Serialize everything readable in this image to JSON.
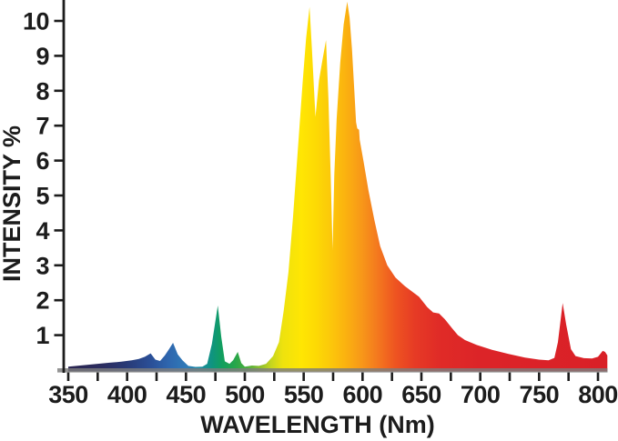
{
  "chart_data": {
    "type": "area",
    "title": "",
    "xlabel": "WAVELENGTH (Nm)",
    "ylabel": "INTENSITY %",
    "xlim": [
      350,
      810
    ],
    "ylim": [
      0,
      10.6
    ],
    "x_tick_minor_step_nm": 25,
    "x_tick_labels": [
      350,
      400,
      450,
      500,
      550,
      600,
      650,
      700,
      750,
      800
    ],
    "y_tick_labels": [
      1,
      2,
      3,
      4,
      5,
      6,
      7,
      8,
      9,
      10
    ],
    "grid": "off",
    "legend": "none",
    "series": [
      {
        "name": "spectral-intensity",
        "units_x": "nm",
        "units_y": "percent",
        "points": [
          [
            350,
            0.1
          ],
          [
            360,
            0.13
          ],
          [
            372,
            0.17
          ],
          [
            385,
            0.21
          ],
          [
            395,
            0.24
          ],
          [
            404,
            0.28
          ],
          [
            410,
            0.32
          ],
          [
            415,
            0.38
          ],
          [
            420,
            0.48
          ],
          [
            424,
            0.3
          ],
          [
            428,
            0.26
          ],
          [
            432,
            0.42
          ],
          [
            436,
            0.62
          ],
          [
            439,
            0.78
          ],
          [
            443,
            0.45
          ],
          [
            447,
            0.28
          ],
          [
            452,
            0.12
          ],
          [
            458,
            0.09
          ],
          [
            464,
            0.1
          ],
          [
            468,
            0.18
          ],
          [
            472,
            0.75
          ],
          [
            477,
            1.85
          ],
          [
            480,
            0.95
          ],
          [
            483,
            0.25
          ],
          [
            487,
            0.18
          ],
          [
            490,
            0.28
          ],
          [
            494,
            0.52
          ],
          [
            497,
            0.2
          ],
          [
            500,
            0.1
          ],
          [
            506,
            0.13
          ],
          [
            512,
            0.12
          ],
          [
            518,
            0.18
          ],
          [
            524,
            0.4
          ],
          [
            529,
            0.8
          ],
          [
            533,
            1.7
          ],
          [
            537,
            2.8
          ],
          [
            541,
            4.4
          ],
          [
            545,
            6.3
          ],
          [
            549,
            8.2
          ],
          [
            552,
            9.5
          ],
          [
            555,
            10.4
          ],
          [
            557,
            9.2
          ],
          [
            560,
            7.25
          ],
          [
            563,
            8.3
          ],
          [
            566,
            8.9
          ],
          [
            569,
            9.45
          ],
          [
            571,
            7.8
          ],
          [
            573,
            5.5
          ],
          [
            574.5,
            3.45
          ],
          [
            576,
            5.6
          ],
          [
            578,
            7.2
          ],
          [
            581,
            8.8
          ],
          [
            584,
            9.9
          ],
          [
            587,
            10.55
          ],
          [
            589,
            10.1
          ],
          [
            591,
            9.2
          ],
          [
            593,
            8.0
          ],
          [
            594.5,
            7.1
          ],
          [
            595.5,
            6.92
          ],
          [
            597,
            6.88
          ],
          [
            597.6,
            6.6
          ],
          [
            601,
            5.95
          ],
          [
            605,
            5.15
          ],
          [
            610,
            4.3
          ],
          [
            615,
            3.55
          ],
          [
            621,
            3.0
          ],
          [
            628,
            2.65
          ],
          [
            636,
            2.4
          ],
          [
            648,
            2.1
          ],
          [
            655,
            1.8
          ],
          [
            660,
            1.65
          ],
          [
            665,
            1.62
          ],
          [
            670,
            1.45
          ],
          [
            676,
            1.2
          ],
          [
            681,
            1.0
          ],
          [
            687,
            0.86
          ],
          [
            697,
            0.72
          ],
          [
            710,
            0.58
          ],
          [
            724,
            0.46
          ],
          [
            738,
            0.36
          ],
          [
            750,
            0.3
          ],
          [
            758,
            0.28
          ],
          [
            763,
            0.35
          ],
          [
            766,
            0.8
          ],
          [
            770,
            1.92
          ],
          [
            773,
            1.3
          ],
          [
            777,
            0.6
          ],
          [
            781,
            0.4
          ],
          [
            788,
            0.34
          ],
          [
            795,
            0.33
          ],
          [
            800,
            0.38
          ],
          [
            804,
            0.55
          ],
          [
            806,
            0.52
          ],
          [
            808,
            0.42
          ]
        ]
      }
    ],
    "fill_gradient_stops_nm": [
      [
        350,
        "#2a2550"
      ],
      [
        380,
        "#2b2d60"
      ],
      [
        400,
        "#283a77"
      ],
      [
        420,
        "#2a4f97"
      ],
      [
        435,
        "#2e66ae"
      ],
      [
        450,
        "#2f7ab8"
      ],
      [
        462,
        "#1d8ba0"
      ],
      [
        472,
        "#0f9480"
      ],
      [
        480,
        "#119e5f"
      ],
      [
        492,
        "#27a64a"
      ],
      [
        502,
        "#4cae3d"
      ],
      [
        512,
        "#86bc30"
      ],
      [
        522,
        "#c4d51f"
      ],
      [
        532,
        "#eee20e"
      ],
      [
        548,
        "#ffe603"
      ],
      [
        560,
        "#fdda04"
      ],
      [
        572,
        "#fcc90a"
      ],
      [
        585,
        "#fbb30f"
      ],
      [
        598,
        "#f89a18"
      ],
      [
        612,
        "#f47a1e"
      ],
      [
        628,
        "#ee5421"
      ],
      [
        645,
        "#e63a25"
      ],
      [
        665,
        "#e02b27"
      ],
      [
        700,
        "#dc2428"
      ],
      [
        808,
        "#d92027"
      ]
    ],
    "colors": {
      "text": "#1c1c1c",
      "y_axis_line": "#1c1c1c",
      "x_axis_bar": "#7d7d7d",
      "tick": "#1c1c1c",
      "background": "#ffffff"
    }
  }
}
